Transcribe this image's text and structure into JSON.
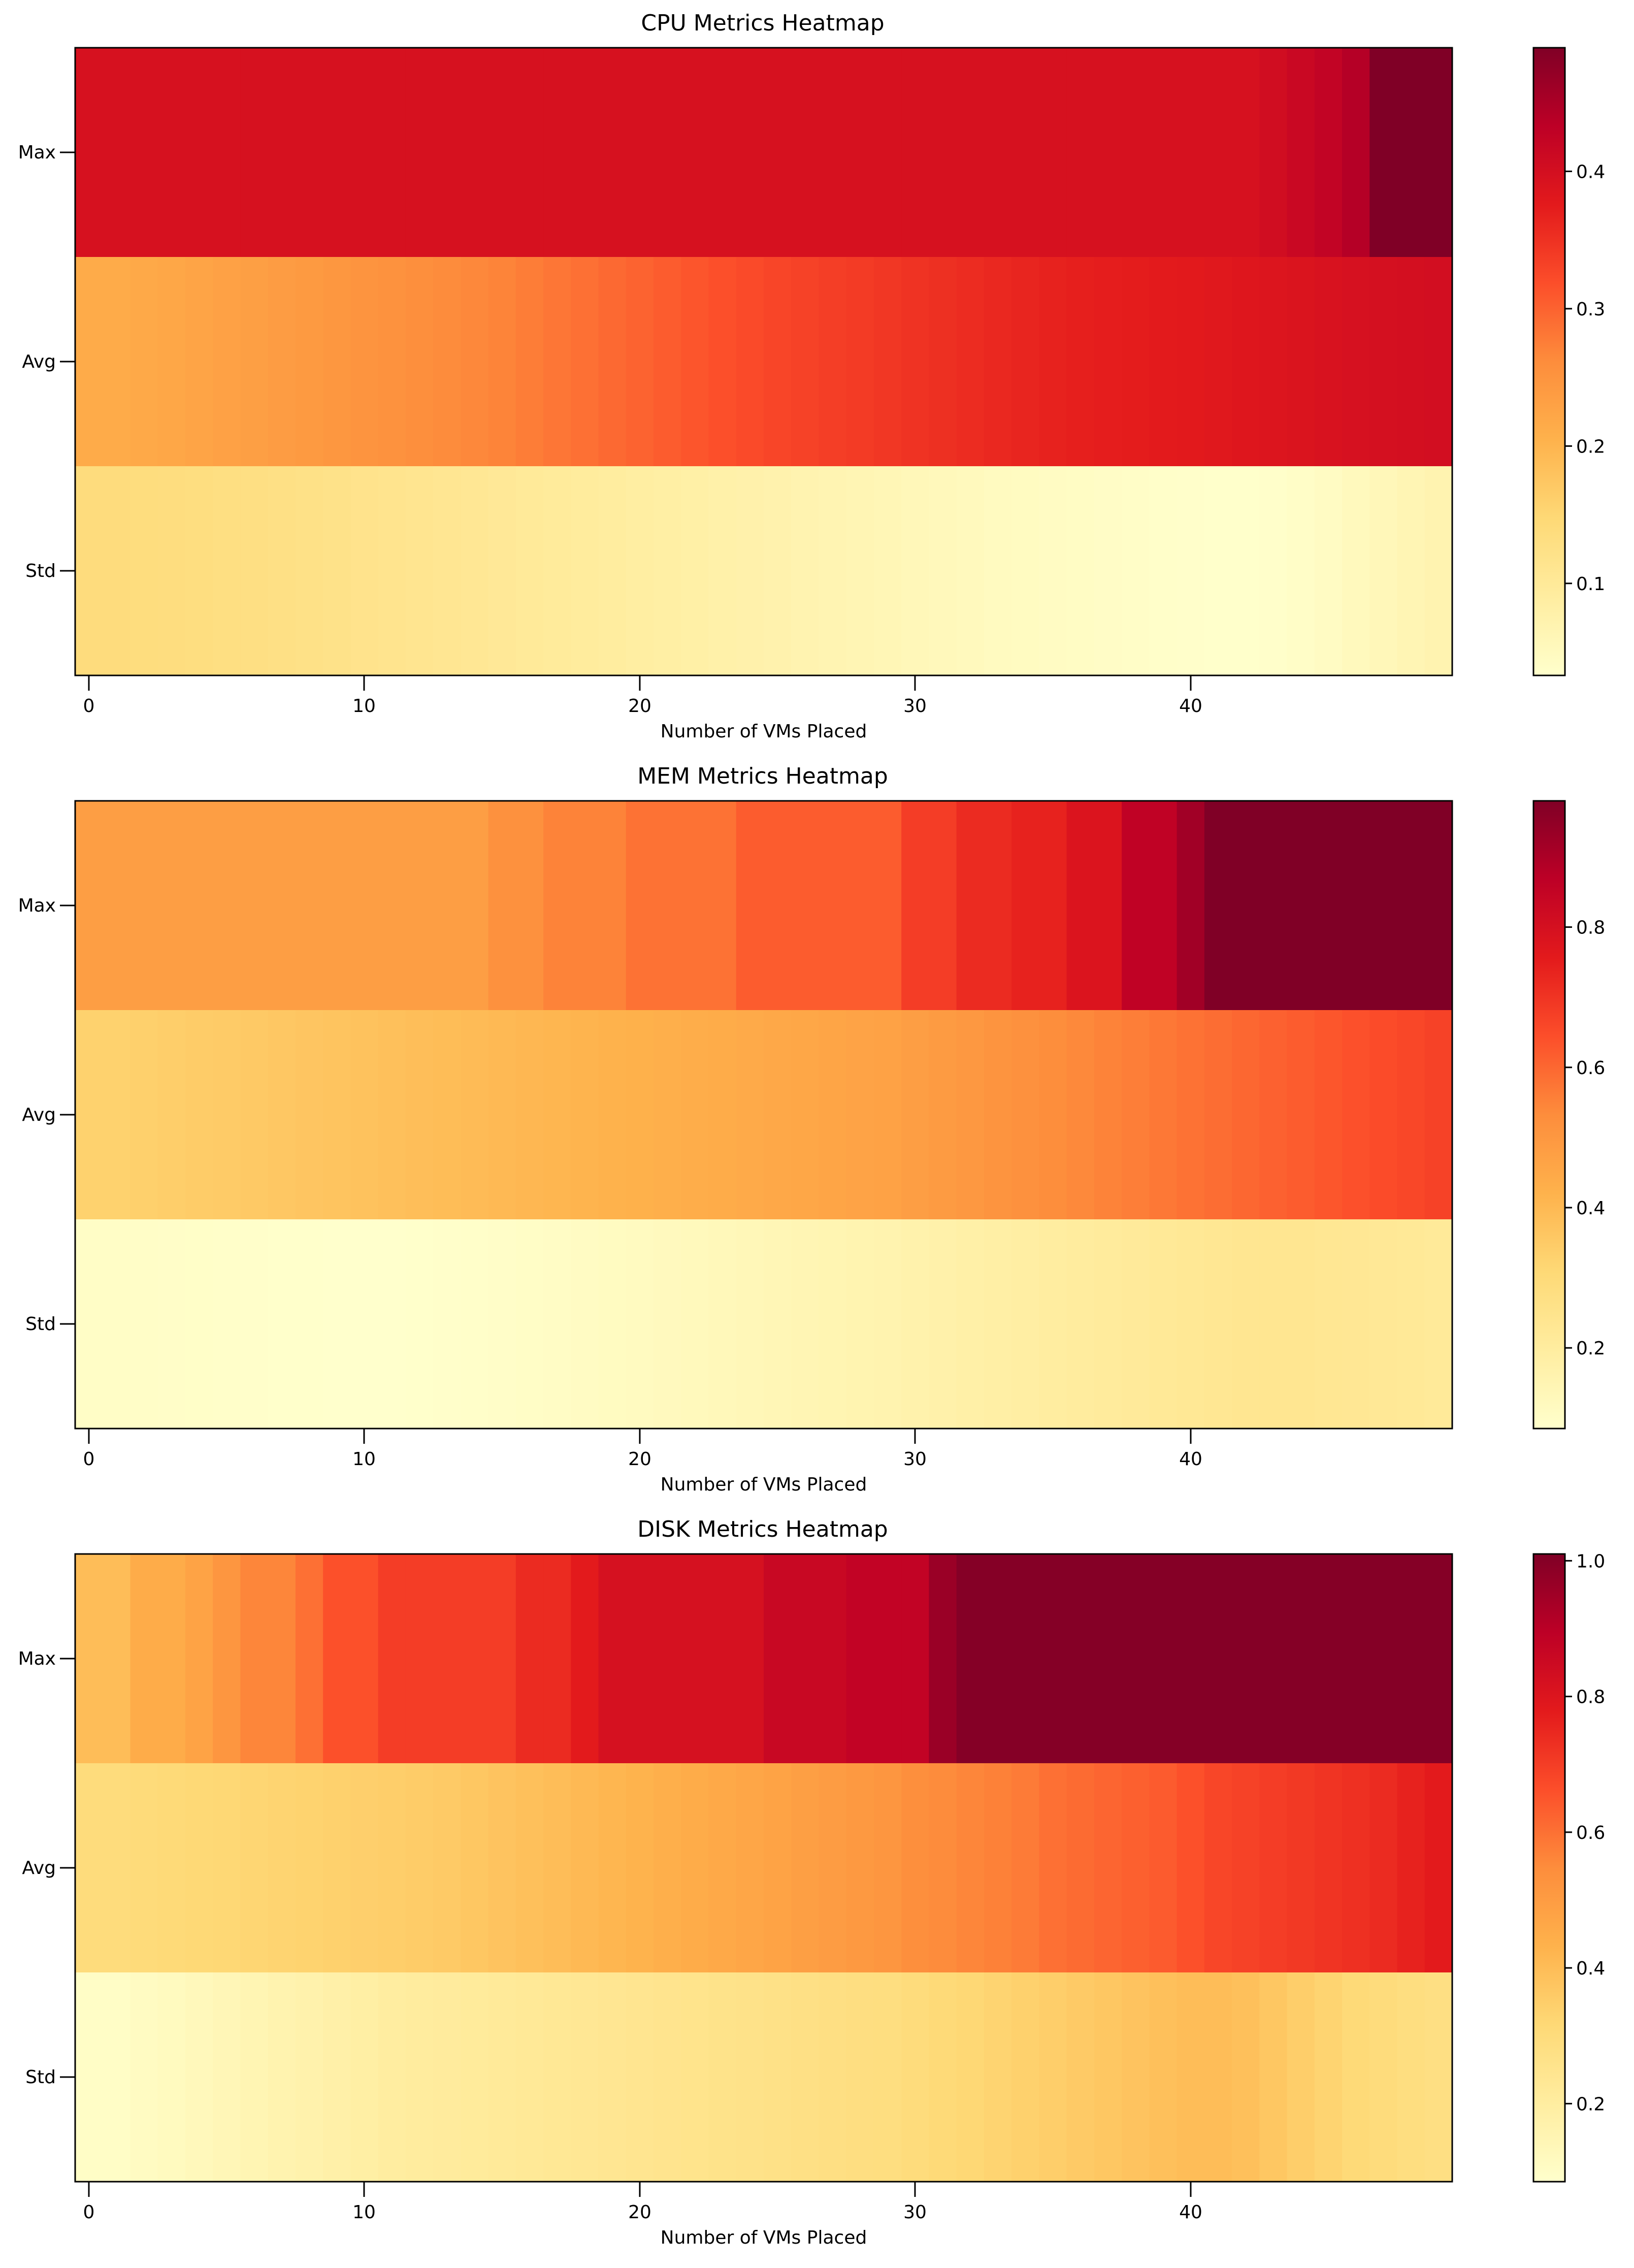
{
  "chart_data": [
    {
      "type": "heatmap",
      "title": "CPU Metrics Heatmap",
      "xlabel": "Number of VMs Placed",
      "ylabel": "",
      "rows": [
        "Max",
        "Avg",
        "Std"
      ],
      "xlim": [
        -0.5,
        49.5
      ],
      "xticks": [
        "0",
        "10",
        "20",
        "30",
        "40"
      ],
      "colormap": "YlOrRd",
      "color_range": [
        0.033,
        0.49
      ],
      "colorbar_ticks": [
        "0.1",
        "0.2",
        "0.3",
        "0.4"
      ],
      "values": [
        [
          0.395,
          0.395,
          0.395,
          0.395,
          0.395,
          0.395,
          0.395,
          0.395,
          0.395,
          0.395,
          0.395,
          0.395,
          0.395,
          0.395,
          0.395,
          0.395,
          0.395,
          0.395,
          0.395,
          0.395,
          0.395,
          0.395,
          0.395,
          0.395,
          0.395,
          0.395,
          0.395,
          0.395,
          0.395,
          0.395,
          0.395,
          0.395,
          0.395,
          0.395,
          0.395,
          0.395,
          0.395,
          0.395,
          0.395,
          0.395,
          0.395,
          0.395,
          0.395,
          0.405,
          0.415,
          0.425,
          0.44,
          0.49,
          0.49,
          0.49
        ],
        [
          0.215,
          0.215,
          0.218,
          0.222,
          0.226,
          0.23,
          0.234,
          0.238,
          0.242,
          0.246,
          0.25,
          0.254,
          0.258,
          0.262,
          0.266,
          0.27,
          0.276,
          0.282,
          0.288,
          0.294,
          0.3,
          0.306,
          0.312,
          0.318,
          0.323,
          0.328,
          0.332,
          0.336,
          0.34,
          0.344,
          0.348,
          0.352,
          0.356,
          0.36,
          0.364,
          0.367,
          0.37,
          0.372,
          0.374,
          0.376,
          0.378,
          0.381,
          0.384,
          0.387,
          0.39,
          0.393,
          0.396,
          0.398,
          0.4,
          0.402
        ],
        [
          0.138,
          0.138,
          0.137,
          0.135,
          0.133,
          0.131,
          0.129,
          0.127,
          0.124,
          0.121,
          0.118,
          0.115,
          0.112,
          0.109,
          0.106,
          0.103,
          0.1,
          0.097,
          0.094,
          0.091,
          0.088,
          0.085,
          0.082,
          0.079,
          0.076,
          0.073,
          0.07,
          0.067,
          0.064,
          0.061,
          0.058,
          0.055,
          0.052,
          0.049,
          0.047,
          0.045,
          0.043,
          0.041,
          0.039,
          0.037,
          0.035,
          0.034,
          0.034,
          0.036,
          0.04,
          0.045,
          0.052,
          0.058,
          0.064,
          0.07
        ]
      ]
    },
    {
      "type": "heatmap",
      "title": "MEM Metrics Heatmap",
      "xlabel": "Number of VMs Placed",
      "ylabel": "",
      "rows": [
        "Max",
        "Avg",
        "Std"
      ],
      "xlim": [
        -0.5,
        49.5
      ],
      "xticks": [
        "0",
        "10",
        "20",
        "30",
        "40"
      ],
      "colormap": "YlOrRd",
      "color_range": [
        0.085,
        0.98
      ],
      "colorbar_ticks": [
        "0.2",
        "0.4",
        "0.6",
        "0.8"
      ],
      "values": [
        [
          0.48,
          0.48,
          0.48,
          0.48,
          0.48,
          0.48,
          0.48,
          0.48,
          0.48,
          0.48,
          0.48,
          0.48,
          0.48,
          0.48,
          0.48,
          0.52,
          0.52,
          0.55,
          0.55,
          0.55,
          0.58,
          0.58,
          0.58,
          0.58,
          0.62,
          0.62,
          0.62,
          0.62,
          0.62,
          0.62,
          0.68,
          0.68,
          0.72,
          0.72,
          0.74,
          0.74,
          0.78,
          0.78,
          0.86,
          0.86,
          0.92,
          0.98,
          0.98,
          0.98,
          0.98,
          0.98,
          0.98,
          0.98,
          0.98,
          0.98
        ],
        [
          0.33,
          0.33,
          0.335,
          0.34,
          0.345,
          0.35,
          0.355,
          0.36,
          0.365,
          0.37,
          0.375,
          0.38,
          0.385,
          0.39,
          0.395,
          0.4,
          0.405,
          0.41,
          0.415,
          0.42,
          0.425,
          0.43,
          0.435,
          0.44,
          0.445,
          0.45,
          0.455,
          0.46,
          0.465,
          0.47,
          0.48,
          0.49,
          0.5,
          0.51,
          0.52,
          0.53,
          0.54,
          0.55,
          0.56,
          0.57,
          0.58,
          0.59,
          0.6,
          0.61,
          0.62,
          0.63,
          0.64,
          0.65,
          0.66,
          0.67
        ],
        [
          0.1,
          0.1,
          0.098,
          0.096,
          0.094,
          0.092,
          0.09,
          0.088,
          0.087,
          0.086,
          0.085,
          0.086,
          0.088,
          0.09,
          0.093,
          0.096,
          0.1,
          0.104,
          0.108,
          0.112,
          0.116,
          0.12,
          0.125,
          0.13,
          0.135,
          0.14,
          0.145,
          0.15,
          0.155,
          0.16,
          0.166,
          0.172,
          0.178,
          0.184,
          0.19,
          0.196,
          0.202,
          0.208,
          0.214,
          0.22,
          0.226,
          0.232,
          0.236,
          0.238,
          0.236,
          0.232,
          0.228,
          0.224,
          0.22,
          0.216
        ]
      ]
    },
    {
      "type": "heatmap",
      "title": "DISK Metrics Heatmap",
      "xlabel": "Number of VMs Placed",
      "ylabel": "",
      "rows": [
        "Max",
        "Avg",
        "Std"
      ],
      "xlim": [
        -0.5,
        49.5
      ],
      "xticks": [
        "0",
        "10",
        "20",
        "30",
        "40"
      ],
      "colormap": "YlOrRd",
      "color_range": [
        0.085,
        1.01
      ],
      "colorbar_ticks": [
        "0.2",
        "0.4",
        "0.6",
        "0.8",
        "1.0"
      ],
      "colorbar_ticks_values": [
        0.2,
        0.4,
        0.6,
        0.8,
        1.0
      ],
      "values": [
        [
          0.4,
          0.4,
          0.45,
          0.45,
          0.48,
          0.52,
          0.56,
          0.56,
          0.6,
          0.66,
          0.66,
          0.7,
          0.7,
          0.7,
          0.7,
          0.7,
          0.74,
          0.74,
          0.78,
          0.82,
          0.82,
          0.82,
          0.82,
          0.82,
          0.82,
          0.86,
          0.86,
          0.86,
          0.88,
          0.88,
          0.88,
          0.96,
          1.0,
          1.0,
          1.0,
          1.0,
          1.0,
          1.0,
          1.0,
          1.0,
          1.0,
          1.0,
          1.0,
          1.0,
          1.0,
          1.0,
          1.0,
          1.0,
          1.0,
          1.0
        ],
        [
          0.3,
          0.3,
          0.305,
          0.31,
          0.315,
          0.32,
          0.325,
          0.33,
          0.335,
          0.34,
          0.345,
          0.35,
          0.355,
          0.36,
          0.37,
          0.38,
          0.39,
          0.4,
          0.41,
          0.42,
          0.43,
          0.44,
          0.45,
          0.46,
          0.47,
          0.48,
          0.49,
          0.5,
          0.51,
          0.52,
          0.54,
          0.55,
          0.56,
          0.57,
          0.58,
          0.6,
          0.61,
          0.62,
          0.63,
          0.64,
          0.66,
          0.68,
          0.69,
          0.7,
          0.71,
          0.72,
          0.73,
          0.74,
          0.76,
          0.78
        ],
        [
          0.1,
          0.1,
          0.11,
          0.12,
          0.13,
          0.14,
          0.15,
          0.16,
          0.17,
          0.18,
          0.19,
          0.2,
          0.205,
          0.21,
          0.215,
          0.22,
          0.225,
          0.23,
          0.235,
          0.24,
          0.245,
          0.25,
          0.255,
          0.26,
          0.265,
          0.27,
          0.275,
          0.28,
          0.285,
          0.29,
          0.3,
          0.31,
          0.32,
          0.33,
          0.34,
          0.35,
          0.36,
          0.37,
          0.38,
          0.39,
          0.4,
          0.4,
          0.39,
          0.37,
          0.35,
          0.33,
          0.31,
          0.3,
          0.29,
          0.28
        ]
      ]
    }
  ]
}
